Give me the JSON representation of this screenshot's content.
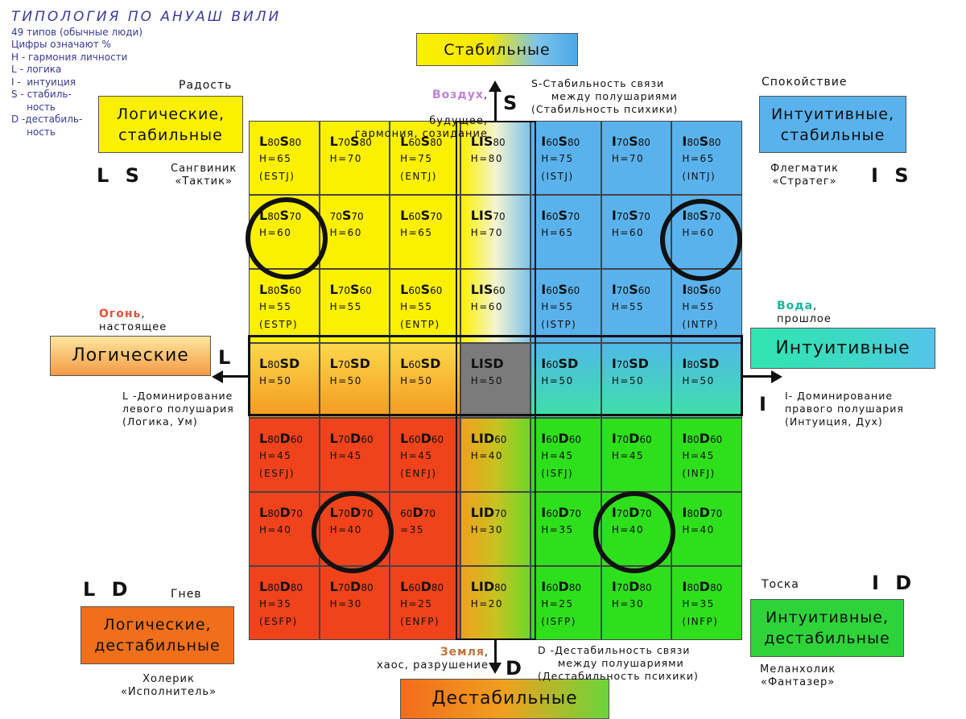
{
  "legend": {
    "title": "ТИПОЛОГИЯ ПО АНУАШ ВИЛИ",
    "lines": [
      "49 типов (обычные люди)",
      "Цифры означают %",
      "Н - гармония личности",
      "L - логика",
      "I -  интуиция",
      "S - стабиль-",
      "     ность",
      "D -дестабиль-",
      "     ность"
    ]
  },
  "boxes": {
    "top": "Стабильные",
    "bottom": "Дестабильные",
    "left": "Логические",
    "right": "Интуитивные",
    "top_left": "Логические,\nстабильные",
    "top_right": "Интуитивные,\nстабильные",
    "bottom_left": "Логические,\nдестабильные",
    "bottom_right": "Интуитивные,\nдестабильные"
  },
  "corners": {
    "ls": "L S",
    "is": "I S",
    "ld": "L D",
    "id": "I D",
    "joy": "Радость",
    "calm": "Спокойствие",
    "anger": "Гнев",
    "sad": "Тоска",
    "sanguine": "Сангвиник\n«Тактик»",
    "phlegmatic": "Флегматик\n«Стратег»",
    "choleric": "Холерик\n«Исполнитель»",
    "melancholic": "Меланхолик\n«Фантазер»"
  },
  "elements": {
    "air": "Воздух",
    "air_rest": "будущее,\nгармония, созидание",
    "fire": "Огонь",
    "fire_rest": "настоящее",
    "water": "Вода",
    "water_rest": "прошлое",
    "earth": "Земля",
    "earth_rest": "хаос, разрушение"
  },
  "axes": {
    "s": "S",
    "d": "D",
    "l": "L",
    "i": "I",
    "s_desc": "S-Стабильность связи\n     между полушариями\n(Стабильность психики)",
    "d_desc": "D -Дестабильность связи\n     между полушариями\n(Дестабильность психики)",
    "l_desc": "L -Доминирование\nлевого полушария\n(Логика, Ум)",
    "i_desc": "I- Доминирование\nправого полушария\n(Интуиция, Дух)"
  },
  "colors": {
    "yellow": "#fbf000",
    "blue": "#5ab2ec",
    "red": "#f0431c",
    "green": "#2ee01c",
    "air": "#c47fd8",
    "fire": "#e8503a",
    "water": "#18b79a",
    "earth": "#c0733a",
    "legend": "#3a3a9a"
  },
  "cells": [
    [
      {
        "a": "L",
        "an": "80",
        "b": "S",
        "bn": "80",
        "h": "H=65",
        "t": "(ESTJ)"
      },
      {
        "a": "L",
        "an": "70",
        "b": "S",
        "bn": "80",
        "h": "H=70",
        "t": ""
      },
      {
        "a": "L",
        "an": "60",
        "b": "S",
        "bn": "80",
        "h": "H=75",
        "t": "(ENTJ)"
      },
      {
        "a": "LIS",
        "an": "",
        "b": "",
        "bn": "80",
        "h": "H=80",
        "t": ""
      },
      {
        "a": "I",
        "an": "60",
        "b": "S",
        "bn": "80",
        "h": "H=75",
        "t": "(ISTJ)"
      },
      {
        "a": "I",
        "an": "70",
        "b": "S",
        "bn": "80",
        "h": "H=70",
        "t": ""
      },
      {
        "a": "I",
        "an": "80",
        "b": "S",
        "bn": "80",
        "h": "H=65",
        "t": "(INTJ)"
      }
    ],
    [
      {
        "a": "L",
        "an": "80",
        "b": "S",
        "bn": "70",
        "h": "H=60",
        "t": ""
      },
      {
        "a": "",
        "an": "70",
        "b": "S",
        "bn": "70",
        "h": "H=60",
        "t": ""
      },
      {
        "a": "L",
        "an": "60",
        "b": "S",
        "bn": "70",
        "h": "H=65",
        "t": ""
      },
      {
        "a": "LIS",
        "an": "",
        "b": "",
        "bn": "70",
        "h": "H=70",
        "t": ""
      },
      {
        "a": "I",
        "an": "60",
        "b": "S",
        "bn": "70",
        "h": "H=65",
        "t": ""
      },
      {
        "a": "I",
        "an": "70",
        "b": "S",
        "bn": "70",
        "h": "H=60",
        "t": ""
      },
      {
        "a": "I",
        "an": "80",
        "b": "S",
        "bn": "70",
        "h": "H=60",
        "t": ""
      }
    ],
    [
      {
        "a": "L",
        "an": "80",
        "b": "S",
        "bn": "60",
        "h": "H=55",
        "t": "(ESTP)"
      },
      {
        "a": "L",
        "an": "70",
        "b": "S",
        "bn": "60",
        "h": "H=55",
        "t": ""
      },
      {
        "a": "L",
        "an": "60",
        "b": "S",
        "bn": "60",
        "h": "H=55",
        "t": "(ENTP)"
      },
      {
        "a": "LIS",
        "an": "",
        "b": "",
        "bn": "60",
        "h": "H=60",
        "t": ""
      },
      {
        "a": "I",
        "an": "60",
        "b": "S",
        "bn": "60",
        "h": "H=55",
        "t": "(ISTP)"
      },
      {
        "a": "I",
        "an": "70",
        "b": "S",
        "bn": "60",
        "h": "H=55",
        "t": ""
      },
      {
        "a": "I",
        "an": "80",
        "b": "S",
        "bn": "60",
        "h": "H=55",
        "t": "(INTP)"
      }
    ],
    [
      {
        "a": "L",
        "an": "80",
        "b": "SD",
        "bn": "",
        "h": "H=50",
        "t": ""
      },
      {
        "a": "L",
        "an": "70",
        "b": "SD",
        "bn": "",
        "h": "H=50",
        "t": ""
      },
      {
        "a": "L",
        "an": "60",
        "b": "SD",
        "bn": "",
        "h": "H=50",
        "t": ""
      },
      {
        "a": "LISD",
        "an": "",
        "b": "",
        "bn": "",
        "h": "H=50",
        "t": ""
      },
      {
        "a": "I",
        "an": "60",
        "b": "SD",
        "bn": "",
        "h": "H=50",
        "t": ""
      },
      {
        "a": "I",
        "an": "70",
        "b": "SD",
        "bn": "",
        "h": "H=50",
        "t": ""
      },
      {
        "a": "I",
        "an": "80",
        "b": "SD",
        "bn": "",
        "h": "H=50",
        "t": ""
      }
    ],
    [
      {
        "a": "L",
        "an": "80",
        "b": "D",
        "bn": "60",
        "h": "H=45",
        "t": "(ESFJ)"
      },
      {
        "a": "L",
        "an": "70",
        "b": "D",
        "bn": "60",
        "h": "H=45",
        "t": ""
      },
      {
        "a": "L",
        "an": "60",
        "b": "D",
        "bn": "60",
        "h": "H=45",
        "t": "(ENFJ)"
      },
      {
        "a": "LID",
        "an": "",
        "b": "",
        "bn": "60",
        "h": "H=40",
        "t": ""
      },
      {
        "a": "I",
        "an": "60",
        "b": "D",
        "bn": "60",
        "h": "H=45",
        "t": "(ISFJ)"
      },
      {
        "a": "I",
        "an": "70",
        "b": "D",
        "bn": "60",
        "h": "H=45",
        "t": ""
      },
      {
        "a": "I",
        "an": "80",
        "b": "D",
        "bn": "60",
        "h": "H=45",
        "t": "(INFJ)"
      }
    ],
    [
      {
        "a": "L",
        "an": "80",
        "b": "D",
        "bn": "70",
        "h": "H=40",
        "t": ""
      },
      {
        "a": "L",
        "an": "70",
        "b": "D",
        "bn": "70",
        "h": "H=40",
        "t": ""
      },
      {
        "a": "",
        "an": "60",
        "b": "D",
        "bn": "70",
        "h": "=35",
        "t": ""
      },
      {
        "a": "LID",
        "an": "",
        "b": "",
        "bn": "70",
        "h": "H=30",
        "t": ""
      },
      {
        "a": "I",
        "an": "60",
        "b": "D",
        "bn": "70",
        "h": "H=35",
        "t": ""
      },
      {
        "a": "I",
        "an": "70",
        "b": "D",
        "bn": "70",
        "h": "H=40",
        "t": ""
      },
      {
        "a": "I",
        "an": "80",
        "b": "D",
        "bn": "70",
        "h": "H=40",
        "t": ""
      }
    ],
    [
      {
        "a": "L",
        "an": "80",
        "b": "D",
        "bn": "80",
        "h": "H=35",
        "t": "(ESFP)"
      },
      {
        "a": "L",
        "an": "70",
        "b": "D",
        "bn": "80",
        "h": "H=30",
        "t": ""
      },
      {
        "a": "L",
        "an": "60",
        "b": "D",
        "bn": "80",
        "h": "H=25",
        "t": "(ENFP)"
      },
      {
        "a": "LID",
        "an": "",
        "b": "",
        "bn": "80",
        "h": "H=20",
        "t": ""
      },
      {
        "a": "I",
        "an": "60",
        "b": "D",
        "bn": "80",
        "h": "H=25",
        "t": "(ISFP)"
      },
      {
        "a": "I",
        "an": "70",
        "b": "D",
        "bn": "80",
        "h": "H=30",
        "t": ""
      },
      {
        "a": "I",
        "an": "80",
        "b": "D",
        "bn": "80",
        "h": "H=35",
        "t": "(INFP)"
      }
    ]
  ]
}
